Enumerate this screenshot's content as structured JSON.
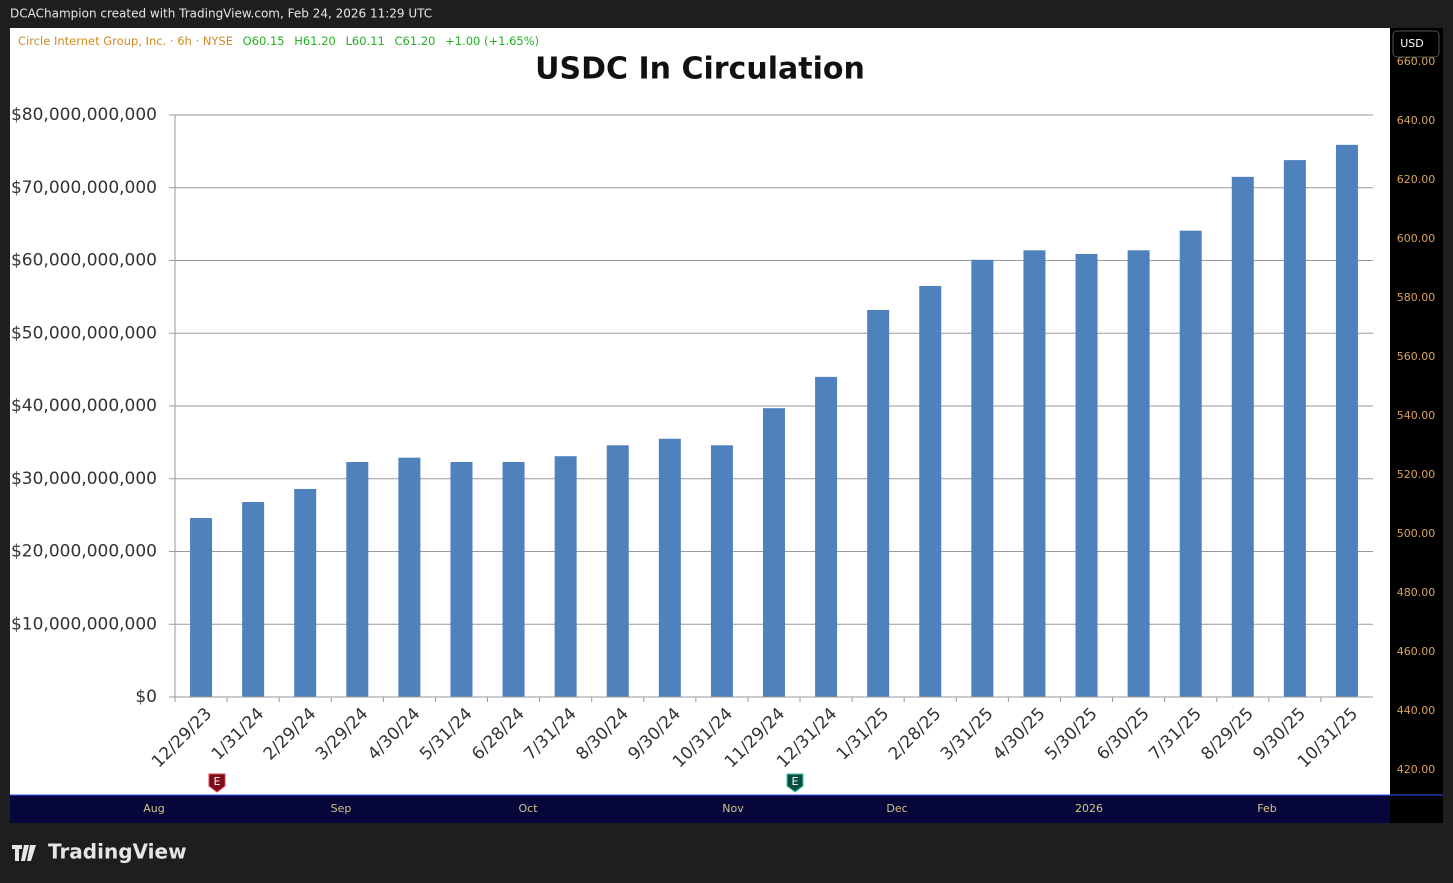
{
  "header": {
    "caption": "DCAChampion created with TradingView.com, Feb 24, 2026 11:29 UTC"
  },
  "symbol_legend": {
    "name": "Circle Internet Group, Inc. · 6h · NYSE",
    "open": "O60.15",
    "high": "H61.20",
    "low": "L60.11",
    "close": "C61.20",
    "change": "+1.00 (+1.65%)"
  },
  "currency_button": "USD",
  "price_axis": {
    "lim": [
      411.5,
      671.5
    ],
    "ticks": [
      {
        "value": 420,
        "label": "420.00"
      },
      {
        "value": 440,
        "label": "440.00"
      },
      {
        "value": 460,
        "label": "460.00"
      },
      {
        "value": 480,
        "label": "480.00"
      },
      {
        "value": 500,
        "label": "500.00"
      },
      {
        "value": 520,
        "label": "520.00"
      },
      {
        "value": 540,
        "label": "540.00"
      },
      {
        "value": 560,
        "label": "560.00"
      },
      {
        "value": 580,
        "label": "580.00"
      },
      {
        "value": 600,
        "label": "600.00"
      },
      {
        "value": 620,
        "label": "620.00"
      },
      {
        "value": 640,
        "label": "640.00"
      },
      {
        "value": 660,
        "label": "660.00"
      }
    ]
  },
  "time_axis": [
    "Aug",
    "Sep",
    "Oct",
    "Nov",
    "Dec",
    "2026",
    "Feb"
  ],
  "earnings_markers": [
    "E",
    "E"
  ],
  "logo": "TradingView",
  "chart_data": {
    "type": "bar",
    "title": "USDC In Circulation",
    "categories": [
      "12/29/23",
      "1/31/24",
      "2/29/24",
      "3/29/24",
      "4/30/24",
      "5/31/24",
      "6/28/24",
      "7/31/24",
      "8/30/24",
      "9/30/24",
      "10/31/24",
      "11/29/24",
      "12/31/24",
      "1/31/25",
      "2/28/25",
      "3/31/25",
      "4/30/25",
      "5/30/25",
      "6/30/25",
      "7/31/25",
      "8/29/25",
      "9/30/25",
      "10/31/25"
    ],
    "values": [
      24600000000,
      26800000000,
      28600000000,
      32300000000,
      32900000000,
      32300000000,
      32300000000,
      33100000000,
      34600000000,
      35500000000,
      34600000000,
      39700000000,
      44000000000,
      53200000000,
      56500000000,
      60100000000,
      61400000000,
      60900000000,
      61400000000,
      64100000000,
      71500000000,
      73800000000,
      75900000000
    ],
    "color": "#4f81bd",
    "ylim": [
      0,
      80000000000
    ],
    "yticks": [
      {
        "value": 0,
        "label": "$0"
      },
      {
        "value": 10000000000,
        "label": "$10,000,000,000"
      },
      {
        "value": 20000000000,
        "label": "$20,000,000,000"
      },
      {
        "value": 30000000000,
        "label": "$30,000,000,000"
      },
      {
        "value": 40000000000,
        "label": "$40,000,000,000"
      },
      {
        "value": 50000000000,
        "label": "$50,000,000,000"
      },
      {
        "value": 60000000000,
        "label": "$60,000,000,000"
      },
      {
        "value": 70000000000,
        "label": "$70,000,000,000"
      },
      {
        "value": 80000000000,
        "label": "$80,000,000,000"
      }
    ],
    "grid": true
  }
}
